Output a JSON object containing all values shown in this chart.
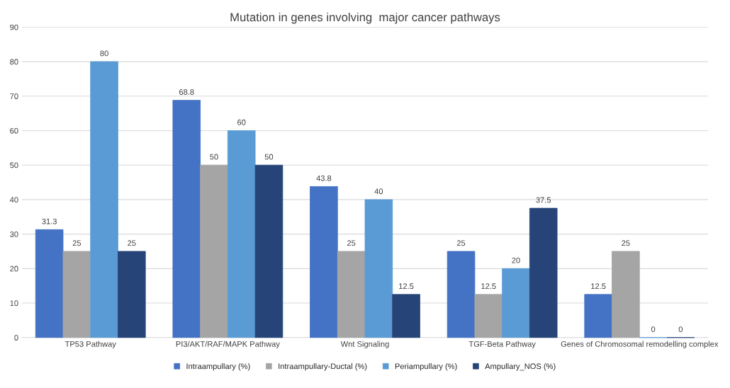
{
  "chart_data": {
    "type": "bar",
    "title": "Mutation in genes involving  major cancer pathways",
    "categories": [
      "TP53 Pathway",
      "PI3/AKT/RAF/MAPK Pathway",
      "Wnt Signaling",
      "TGF-Beta Pathway",
      "Genes of Chromosomal remodelling complex"
    ],
    "series": [
      {
        "name": "Intraampullary (%)",
        "color": "#4472c4",
        "values": [
          31.3,
          68.8,
          43.8,
          25,
          12.5
        ]
      },
      {
        "name": "Intraampullary-Ductal (%)",
        "color": "#a5a5a5",
        "values": [
          25,
          50,
          25,
          12.5,
          25
        ]
      },
      {
        "name": "Periampullary (%)",
        "color": "#5b9bd5",
        "values": [
          80,
          60,
          40,
          20,
          0
        ]
      },
      {
        "name": "Ampullary_NOS (%)",
        "color": "#264478",
        "values": [
          25,
          50,
          12.5,
          37.5,
          0
        ]
      }
    ],
    "ylim": [
      0,
      90
    ],
    "yticks": [
      0,
      10,
      20,
      30,
      40,
      50,
      60,
      70,
      80,
      90
    ],
    "grid": "y",
    "legend": "bottom",
    "data_labels": true
  }
}
